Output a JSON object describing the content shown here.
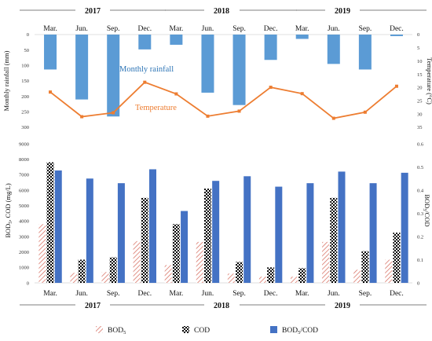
{
  "chart_data": [
    {
      "type": "bar",
      "chart": "monthly-rainfall",
      "categories": [
        "Mar.",
        "Jun.",
        "Sep.",
        "Dec.",
        "Mar.",
        "Jun.",
        "Sep.",
        "Dec.",
        "Mar.",
        "Jun.",
        "Sep.",
        "Dec."
      ],
      "years": [
        "2017",
        "2018",
        "2019"
      ],
      "ylabel": "Monthly rainfall (mm)",
      "ylim": [
        0,
        300
      ],
      "y_inverted": true,
      "yticks": [
        0,
        50,
        100,
        150,
        200,
        250,
        300
      ],
      "series": [
        {
          "name": "Monthly rainfall",
          "color": "#5b9bd5",
          "values": [
            113,
            210,
            265,
            48,
            33,
            188,
            228,
            82,
            14,
            95,
            113,
            5
          ]
        }
      ]
    },
    {
      "type": "line",
      "chart": "temperature",
      "ylabel": "Temperature (°C)",
      "ylim": [
        0,
        35
      ],
      "y_inverted": true,
      "yticks": [
        0,
        5,
        10,
        15,
        20,
        25,
        30,
        35
      ],
      "series": [
        {
          "name": "Temperature",
          "color": "#ed7d31",
          "values": [
            21.7,
            31,
            29.5,
            18,
            22.4,
            30.8,
            28.9,
            19.9,
            22.3,
            31.6,
            29.3,
            19.5
          ]
        }
      ]
    },
    {
      "type": "bar",
      "chart": "water-quality",
      "categories": [
        "Mar.",
        "Jun.",
        "Sep.",
        "Dec.",
        "Mar.",
        "Jun.",
        "Sep.",
        "Dec.",
        "Mar.",
        "Jun.",
        "Sep.",
        "Dec."
      ],
      "years": [
        "2017",
        "2018",
        "2019"
      ],
      "ylabel_main": "BOD",
      "ylabel_sub": "5",
      "ylabel_rest": ", COD (mg/L)",
      "ylim": [
        0,
        9000
      ],
      "yticks": [
        0,
        1000,
        2000,
        3000,
        4000,
        5000,
        6000,
        7000,
        8000,
        9000
      ],
      "y2label_main": "BOD",
      "y2label_sub": "5",
      "y2label_rest": "/COD",
      "y2lim": [
        0,
        0.6
      ],
      "y2ticks": [
        0,
        0.1,
        0.2,
        0.3,
        0.4,
        0.5,
        0.6
      ],
      "legend": [
        {
          "main": "BOD",
          "sub": "5",
          "rest": ""
        },
        {
          "main": "COD",
          "sub": "",
          "rest": ""
        },
        {
          "main": "BOD",
          "sub": "5",
          "rest": "/COD"
        }
      ],
      "series": [
        {
          "key": "bod5",
          "axis": "left",
          "pattern": "hatch",
          "color": "#e07a6a",
          "values": [
            3800,
            650,
            700,
            2700,
            1150,
            2650,
            600,
            400,
            400,
            2650,
            850,
            1500
          ]
        },
        {
          "key": "cod",
          "axis": "left",
          "pattern": "checker",
          "color": "#000000",
          "values": [
            7800,
            1500,
            1650,
            5500,
            3800,
            6100,
            1350,
            1000,
            950,
            5500,
            2050,
            3250
          ]
        },
        {
          "key": "ratio",
          "axis": "right",
          "pattern": "solid",
          "color": "#4472c4",
          "values": [
            0.485,
            0.45,
            0.43,
            0.49,
            0.31,
            0.44,
            0.46,
            0.415,
            0.43,
            0.48,
            0.43,
            0.475
          ]
        }
      ]
    }
  ]
}
